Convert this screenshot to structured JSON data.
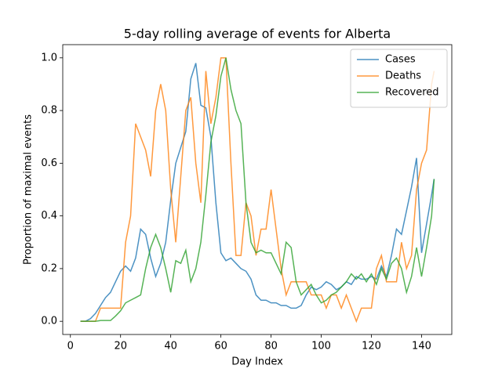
{
  "chart_data": {
    "type": "line",
    "title": "5-day rolling average of events for Alberta",
    "xlabel": "Day Index",
    "ylabel": "Proportion of maximal events",
    "x": [
      4,
      6,
      8,
      10,
      12,
      14,
      16,
      18,
      20,
      22,
      24,
      26,
      28,
      30,
      32,
      34,
      36,
      38,
      40,
      42,
      44,
      46,
      48,
      50,
      52,
      54,
      56,
      58,
      60,
      62,
      64,
      66,
      68,
      70,
      72,
      74,
      76,
      78,
      80,
      82,
      84,
      86,
      88,
      90,
      92,
      94,
      96,
      98,
      100,
      102,
      104,
      106,
      108,
      110,
      112,
      114,
      116,
      118,
      120,
      122,
      124,
      126,
      128,
      130,
      132,
      134,
      136,
      138,
      140,
      142,
      144,
      145
    ],
    "series": [
      {
        "name": "Cases",
        "color": "#1f77b4",
        "values": [
          0,
          0,
          0.01,
          0.03,
          0.06,
          0.09,
          0.11,
          0.15,
          0.19,
          0.21,
          0.19,
          0.24,
          0.35,
          0.33,
          0.24,
          0.17,
          0.22,
          0.3,
          0.46,
          0.6,
          0.66,
          0.72,
          0.92,
          0.98,
          0.82,
          0.81,
          0.7,
          0.45,
          0.26,
          0.23,
          0.24,
          0.22,
          0.2,
          0.19,
          0.16,
          0.1,
          0.08,
          0.08,
          0.07,
          0.07,
          0.06,
          0.06,
          0.05,
          0.05,
          0.06,
          0.1,
          0.13,
          0.12,
          0.13,
          0.15,
          0.14,
          0.12,
          0.13,
          0.15,
          0.14,
          0.17,
          0.16,
          0.16,
          0.17,
          0.16,
          0.21,
          0.17,
          0.25,
          0.35,
          0.33,
          0.42,
          0.51,
          0.62,
          0.26,
          0.37,
          0.48,
          0.54
        ]
      },
      {
        "name": "Deaths",
        "color": "#ff7f0e",
        "values": [
          0,
          0,
          0,
          0,
          0.05,
          0.05,
          0.05,
          0.05,
          0.05,
          0.3,
          0.4,
          0.75,
          0.7,
          0.65,
          0.55,
          0.8,
          0.9,
          0.8,
          0.5,
          0.3,
          0.55,
          0.8,
          0.85,
          0.6,
          0.45,
          0.95,
          0.75,
          0.85,
          1.0,
          1.0,
          0.6,
          0.25,
          0.25,
          0.45,
          0.4,
          0.25,
          0.35,
          0.35,
          0.5,
          0.35,
          0.2,
          0.1,
          0.15,
          0.15,
          0.15,
          0.15,
          0.1,
          0.1,
          0.1,
          0.05,
          0.1,
          0.1,
          0.05,
          0.1,
          0.05,
          0.0,
          0.05,
          0.05,
          0.05,
          0.2,
          0.25,
          0.15,
          0.15,
          0.15,
          0.3,
          0.2,
          0.25,
          0.5,
          0.6,
          0.65,
          0.9,
          0.95
        ]
      },
      {
        "name": "Recovered",
        "color": "#2ca02c",
        "values": [
          0,
          0,
          0,
          0,
          0.003,
          0.003,
          0.003,
          0.02,
          0.04,
          0.07,
          0.08,
          0.09,
          0.1,
          0.2,
          0.28,
          0.33,
          0.28,
          0.2,
          0.11,
          0.23,
          0.22,
          0.27,
          0.15,
          0.2,
          0.3,
          0.48,
          0.68,
          0.78,
          0.93,
          1.0,
          0.88,
          0.8,
          0.75,
          0.45,
          0.3,
          0.26,
          0.27,
          0.26,
          0.26,
          0.22,
          0.18,
          0.3,
          0.28,
          0.15,
          0.1,
          0.12,
          0.14,
          0.1,
          0.07,
          0.08,
          0.1,
          0.11,
          0.13,
          0.15,
          0.18,
          0.16,
          0.18,
          0.15,
          0.18,
          0.14,
          0.2,
          0.16,
          0.22,
          0.24,
          0.2,
          0.11,
          0.17,
          0.28,
          0.17,
          0.28,
          0.4,
          0.54
        ]
      }
    ],
    "xlim": [
      -3.05,
      152.05
    ],
    "xticks": [
      0,
      20,
      40,
      60,
      80,
      100,
      120,
      140
    ],
    "ylim": [
      -0.05,
      1.05
    ],
    "yticks": [
      {
        "value": 0,
        "label": "0.0"
      },
      {
        "value": 0.2,
        "label": "0.2"
      },
      {
        "value": 0.4,
        "label": "0.4"
      },
      {
        "value": 0.6,
        "label": "0.6"
      },
      {
        "value": 0.8,
        "label": "0.8"
      },
      {
        "value": 1,
        "label": "1.0"
      }
    ],
    "legend": "upper right"
  }
}
